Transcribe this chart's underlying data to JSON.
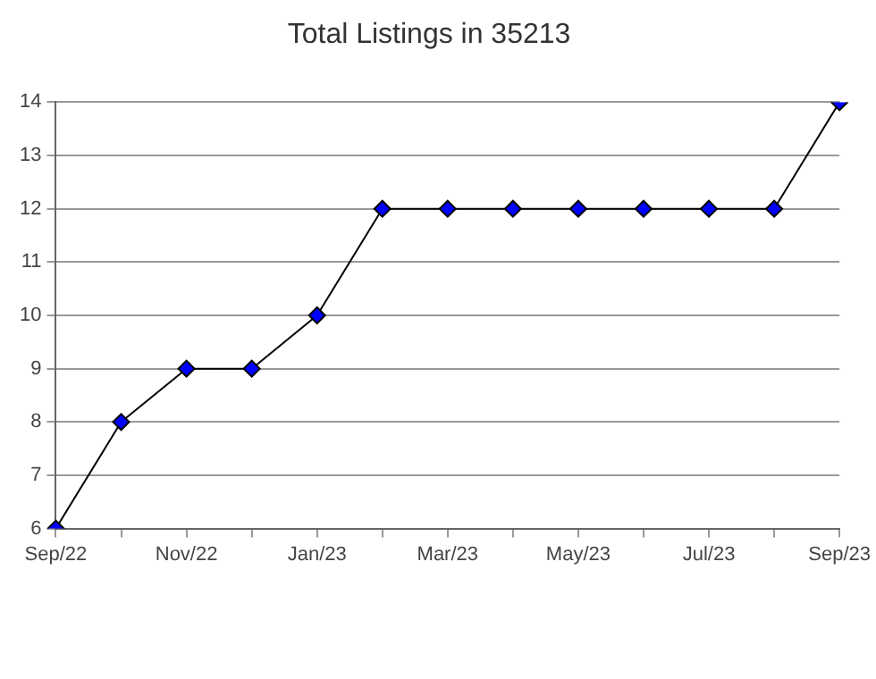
{
  "chart_data": {
    "type": "line",
    "title": "Total Listings in 35213",
    "categories": [
      "Sep/22",
      null,
      "Nov/22",
      null,
      "Jan/23",
      null,
      "Mar/23",
      null,
      "May/23",
      null,
      "Jul/23",
      null,
      "Sep/23"
    ],
    "series": [
      {
        "color": "#000000",
        "values": [
          6,
          8,
          9,
          9,
          10,
          12,
          12,
          12,
          12,
          12,
          12,
          12,
          14
        ]
      }
    ],
    "ylim": [
      6,
      14
    ],
    "yticks": [
      6,
      7,
      8,
      9,
      10,
      11,
      12,
      13,
      14
    ],
    "grid": "y",
    "marker": "diamond",
    "line_style": "solid",
    "legend": false
  }
}
